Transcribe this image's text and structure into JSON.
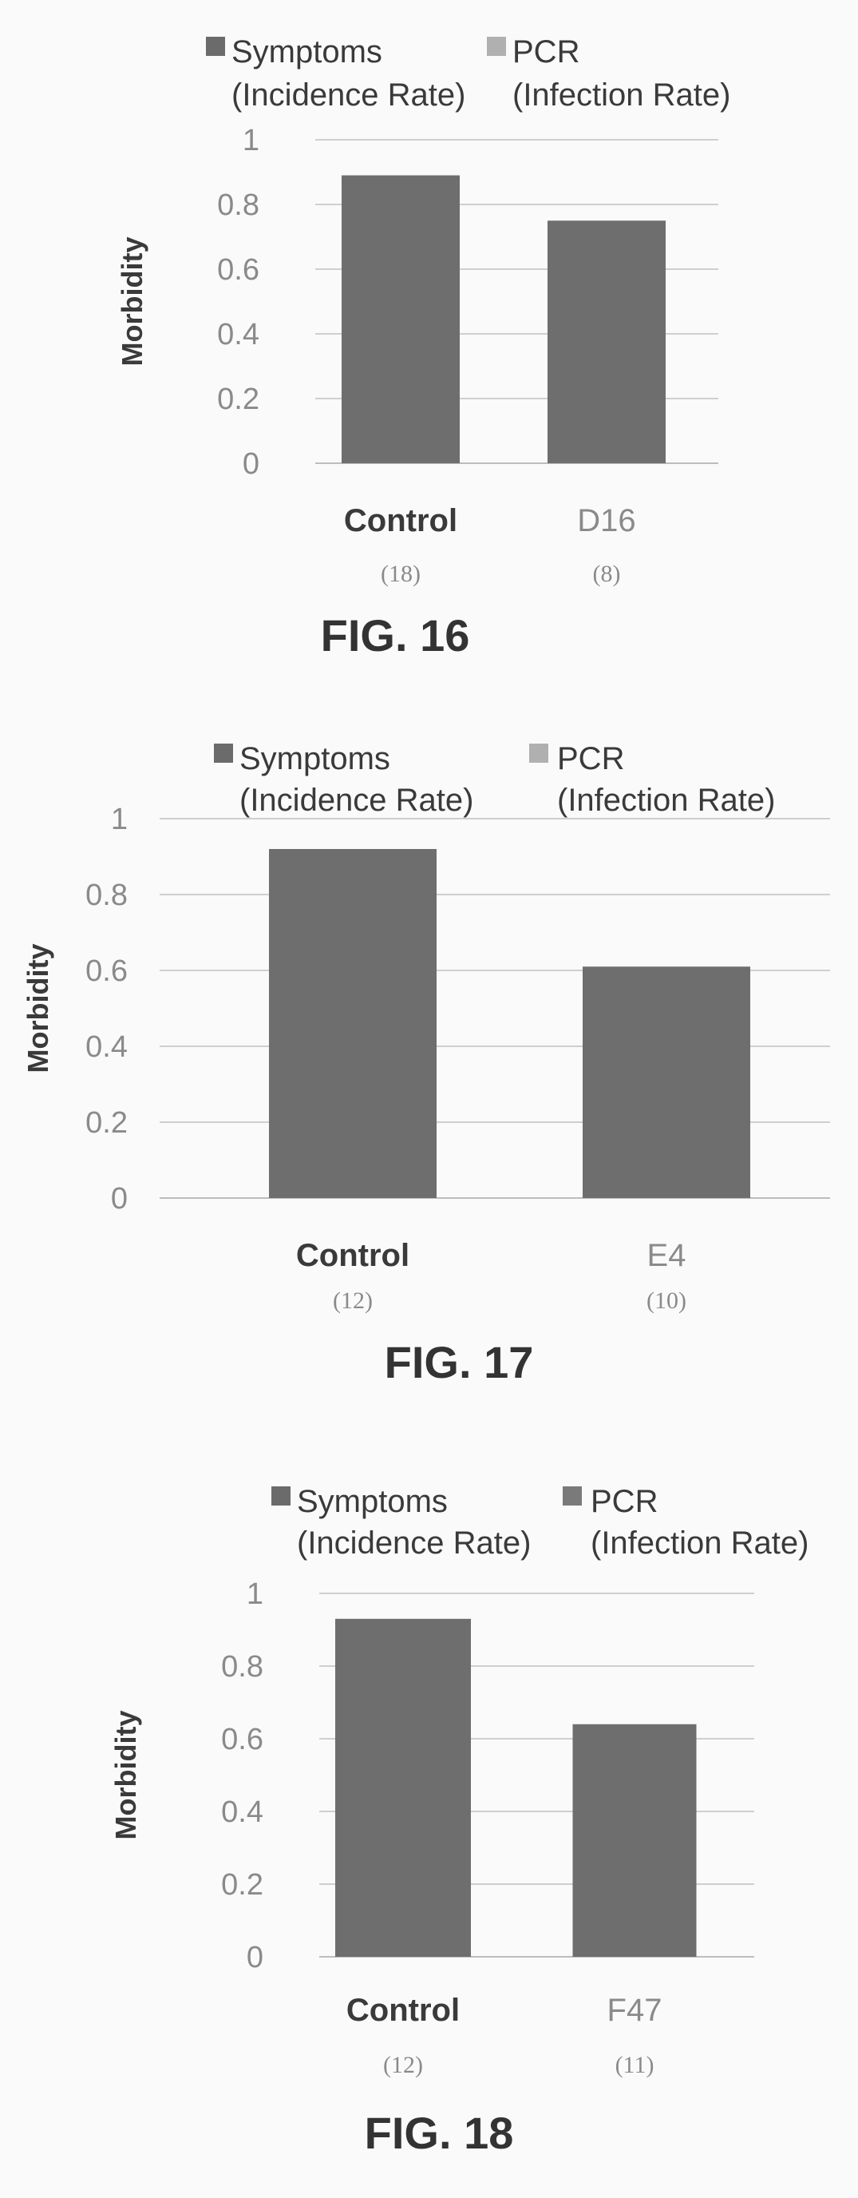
{
  "chart_data": [
    {
      "type": "bar",
      "figure_label": "FIG. 16",
      "ylabel": "Morbidity",
      "ylim": [
        0,
        1
      ],
      "yticks": [
        "0",
        "0.2",
        "0.4",
        "0.6",
        "0.8",
        "1"
      ],
      "legend": {
        "placement": "top",
        "entries": [
          {
            "line1": "Symptoms",
            "line2": "(Incidence Rate)",
            "color": "#6b6b6b"
          },
          {
            "line1": "PCR",
            "line2": "(Infection Rate)",
            "color": "#b0b0b0"
          }
        ]
      },
      "categories": [
        "Control",
        "D16"
      ],
      "counts": [
        "(18)",
        "(8)"
      ],
      "series": [
        {
          "name": "Symptoms (Incidence Rate)",
          "values": [
            0.89,
            0.75
          ]
        }
      ],
      "bar_color": "#6e6e6e",
      "grid": true
    },
    {
      "type": "bar",
      "figure_label": "FIG. 17",
      "ylabel": "Morbidity",
      "ylim": [
        0,
        1
      ],
      "yticks": [
        "0",
        "0.2",
        "0.4",
        "0.6",
        "0.8",
        "1"
      ],
      "legend": {
        "placement": "top",
        "entries": [
          {
            "line1": "Symptoms",
            "line2": "(Incidence Rate)",
            "color": "#6b6b6b"
          },
          {
            "line1": "PCR",
            "line2": "(Infection Rate)",
            "color": "#b0b0b0"
          }
        ]
      },
      "categories": [
        "Control",
        "E4"
      ],
      "counts": [
        "(12)",
        "(10)"
      ],
      "series": [
        {
          "name": "Symptoms (Incidence Rate)",
          "values": [
            0.92,
            0.61
          ]
        }
      ],
      "bar_color": "#6e6e6e",
      "grid": true
    },
    {
      "type": "bar",
      "figure_label": "FIG. 18",
      "ylabel": "Morbidity",
      "ylim": [
        0,
        1
      ],
      "yticks": [
        "0",
        "0.2",
        "0.4",
        "0.6",
        "0.8",
        "1"
      ],
      "legend": {
        "placement": "top",
        "entries": [
          {
            "line1": "Symptoms",
            "line2": "(Incidence Rate)",
            "color": "#6b6b6b"
          },
          {
            "line1": "PCR",
            "line2": "(Infection Rate)",
            "color": "#7a7a7a"
          }
        ]
      },
      "categories": [
        "Control",
        "F47"
      ],
      "counts": [
        "(12)",
        "(11)"
      ],
      "series": [
        {
          "name": "Symptoms (Incidence Rate)",
          "values": [
            0.93,
            0.64
          ]
        }
      ],
      "bar_color": "#6e6e6e",
      "grid": true
    }
  ]
}
